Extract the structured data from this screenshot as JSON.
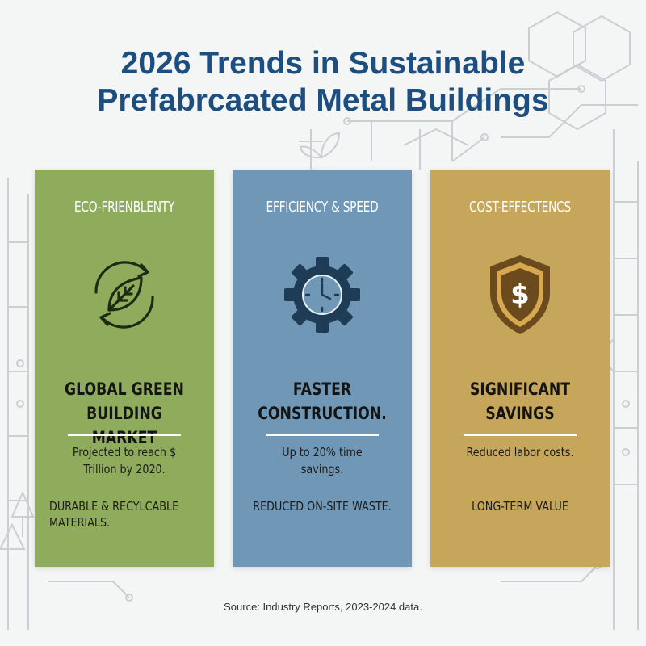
{
  "title": {
    "line1": "2026 Trends in Sustainable",
    "line2": "Prefabrcaated Metal Buildings"
  },
  "colors": {
    "title": "#1d4e80",
    "card_green": "#8eac5b",
    "card_blue": "#7097b5",
    "card_gold": "#c6a65a",
    "icon_dark": "#1f3c57",
    "shield_dark": "#6b4a1e"
  },
  "cards": [
    {
      "heading": "ECO-FRIENBLENTY",
      "icon": "recycle-leaf-icon",
      "stat_line1": "GLOBAL GREEN BUILDING",
      "stat_line2": "MARKET",
      "desc_line1": "Projected to reach $",
      "desc_line2": "Trillion by 2020.",
      "note_line1": "DURABLE & RECYLCABLE",
      "note_line2": "MATERIALS."
    },
    {
      "heading": "EFFICIENCY & SPEED",
      "icon": "gear-clock-icon",
      "stat_line1": "FASTER",
      "stat_line2": "CONSTRUCTION.",
      "desc_line1": "Up to 20% time",
      "desc_line2": "savings.",
      "note_line1": "REDUCED ON-SITE WASTE.",
      "note_line2": ""
    },
    {
      "heading": "COST-EFFECTENCS",
      "icon": "dollar-shield-icon",
      "stat_line1": "SIGNIFICANT",
      "stat_line2": "SAVINGS",
      "desc_line1": "Reduced labor costs.",
      "desc_line2": "",
      "note_line1": "LONG-TERM VALUE",
      "note_line2": ""
    }
  ],
  "source": "Source: Industry Reports, 2023-2024 data."
}
